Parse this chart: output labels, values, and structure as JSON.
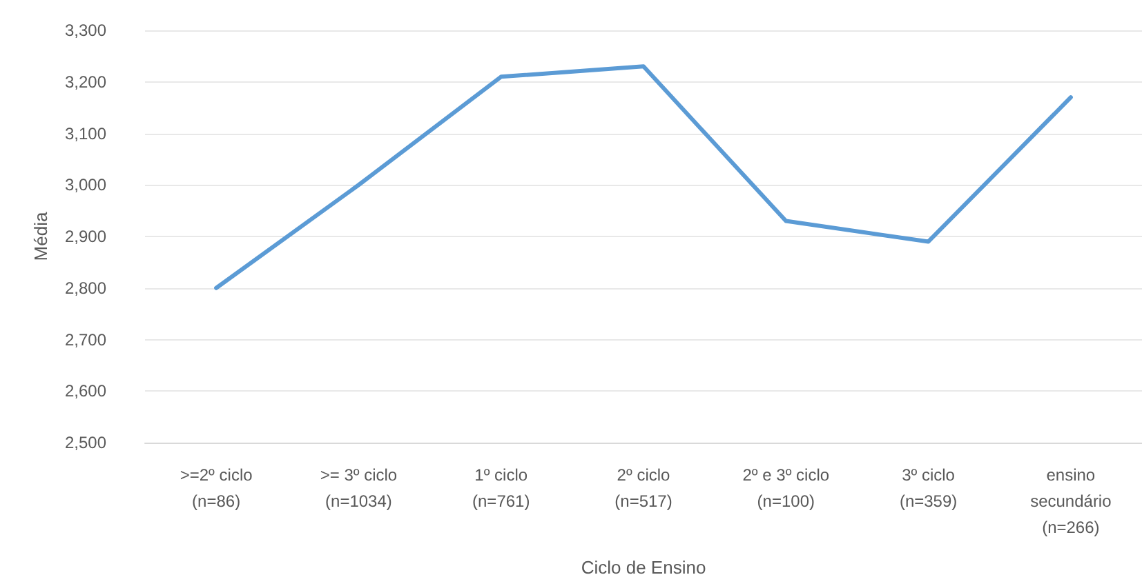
{
  "chart_data": {
    "type": "line",
    "xlabel": "Ciclo de Ensino",
    "ylabel": "Média",
    "categories": [
      ">=2º ciclo\n(n=86)",
      ">= 3º ciclo\n(n=1034)",
      "1º ciclo\n(n=761)",
      "2º ciclo\n(n=517)",
      "2º e 3º ciclo\n(n=100)",
      "3º ciclo\n(n=359)",
      "ensino\nsecundário\n(n=266)"
    ],
    "series": [
      {
        "color": "#5b9bd5",
        "values": [
          2800,
          3000,
          3210,
          3230,
          2930,
          2890,
          3170
        ]
      }
    ],
    "ylim": [
      2500,
      3300
    ],
    "yticks": [
      {
        "value": 2500,
        "label": "2,500"
      },
      {
        "value": 2600,
        "label": "2,600"
      },
      {
        "value": 2700,
        "label": "2,700"
      },
      {
        "value": 2800,
        "label": "2,800"
      },
      {
        "value": 2900,
        "label": "2,900"
      },
      {
        "value": 3000,
        "label": "3,000"
      },
      {
        "value": 3100,
        "label": "3,100"
      },
      {
        "value": 3200,
        "label": "3,200"
      },
      {
        "value": 3300,
        "label": "3,300"
      }
    ],
    "grid": "y",
    "marker": "none",
    "line_style": "solid"
  }
}
